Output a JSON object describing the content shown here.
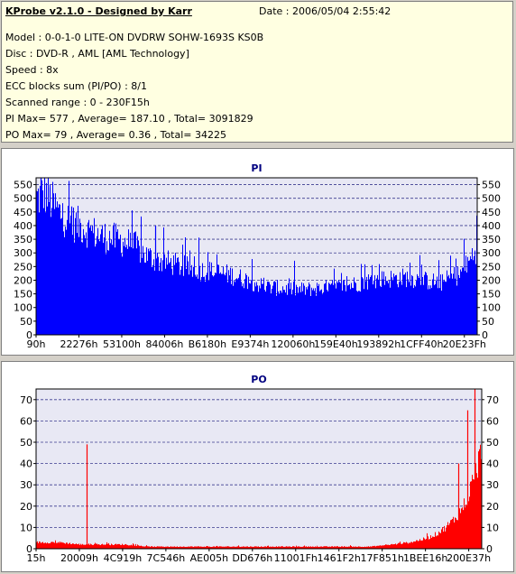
{
  "info": {
    "title": "KProbe v2.1.0 - Designed by Karr",
    "date": "Date : 2006/05/04 2:55:42",
    "model": "Model : 0-0-1-0 LITE-ON DVDRW SOHW-1693S KS0B",
    "disc": "Disc : DVD-R , AML [AML Technology]",
    "speed": "Speed : 8x",
    "ecc": "ECC blocks sum (PI/PO) : 8/1",
    "range": "Scanned range : 0 - 230F15h",
    "pi_stats": "PI Max= 577 , Average= 187.10 , Total= 3091829",
    "po_stats": "PO Max= 79 , Average= 0.36 , Total= 34225"
  },
  "colors": {
    "pi": "#0000ff",
    "po": "#ff0000",
    "plot_bg": "#e8e8f4",
    "grid": "#3b3b8f",
    "title": "#000080"
  },
  "chart_data": [
    {
      "type": "area",
      "title": "PI",
      "ylim": [
        0,
        575
      ],
      "yticks": [
        0,
        50,
        100,
        150,
        200,
        250,
        300,
        350,
        400,
        450,
        500,
        550
      ],
      "xticks": [
        "90h",
        "22276h",
        "53100h",
        "84006h",
        "B6180h",
        "E9374h",
        "120060h",
        "159E40h",
        "193892h",
        "1CFF40h",
        "20E23Fh"
      ],
      "grid": true,
      "x": [
        0,
        0.02,
        0.05,
        0.08,
        0.1,
        0.12,
        0.15,
        0.18,
        0.2,
        0.22,
        0.25,
        0.28,
        0.3,
        0.33,
        0.36,
        0.4,
        0.44,
        0.48,
        0.52,
        0.56,
        0.6,
        0.64,
        0.68,
        0.72,
        0.76,
        0.8,
        0.84,
        0.88,
        0.9,
        0.92,
        0.94,
        0.96,
        0.98,
        1.0
      ],
      "values": [
        500,
        520,
        450,
        410,
        400,
        380,
        360,
        350,
        340,
        330,
        290,
        270,
        265,
        250,
        240,
        230,
        220,
        200,
        175,
        170,
        165,
        170,
        175,
        185,
        200,
        205,
        210,
        200,
        195,
        190,
        210,
        220,
        260,
        320
      ],
      "spikes": [
        {
          "x": 0.03,
          "value": 540
        },
        {
          "x": 0.01,
          "value": 577
        },
        {
          "x": 0.27,
          "value": 400
        },
        {
          "x": 0.08,
          "value": 470
        }
      ]
    },
    {
      "type": "area",
      "title": "PO",
      "ylim": [
        0,
        75
      ],
      "yticks": [
        0,
        10,
        20,
        30,
        40,
        50,
        60,
        70
      ],
      "xticks": [
        "15h",
        "20009h",
        "4C919h",
        "7C546h",
        "AE005h",
        "DD676h",
        "11001Fh",
        "1461F2h",
        "17F851h",
        "1BEE16h",
        "200E37h"
      ],
      "grid": true,
      "x": [
        0,
        0.05,
        0.1,
        0.15,
        0.2,
        0.25,
        0.3,
        0.35,
        0.4,
        0.45,
        0.5,
        0.55,
        0.6,
        0.65,
        0.7,
        0.75,
        0.8,
        0.84,
        0.88,
        0.9,
        0.92,
        0.94,
        0.96,
        0.98,
        1.0
      ],
      "values": [
        3,
        3,
        2,
        2,
        2,
        1,
        1,
        1,
        1,
        1,
        1,
        1,
        1,
        1,
        1,
        1,
        2,
        3,
        5,
        7,
        10,
        14,
        20,
        30,
        45
      ],
      "spikes": [
        {
          "x": 0.113,
          "value": 49
        },
        {
          "x": 0.97,
          "value": 65
        },
        {
          "x": 0.985,
          "value": 79
        },
        {
          "x": 0.95,
          "value": 40
        }
      ]
    }
  ]
}
